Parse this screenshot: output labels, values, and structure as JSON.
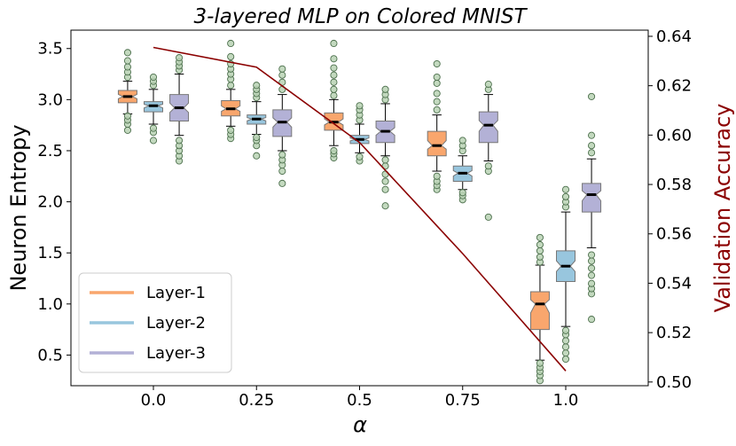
{
  "colors": {
    "layer1": "#f9a66d",
    "layer2": "#98c6de",
    "layer3": "#b3b1d6",
    "accuracy_line": "#8b0000",
    "outlier_fill": "#b8d2b4",
    "outlier_edge": "#4c6f4c",
    "median": "#000000"
  },
  "chart_data": {
    "type": "box+line",
    "title": "3-layered MLP on Colored MNIST",
    "xlabel": "α",
    "ylabel_left": "Neuron Entropy",
    "ylabel_right": "Validation Accuracy",
    "categories": [
      "0.0",
      "0.25",
      "0.5",
      "0.75",
      "1.0"
    ],
    "x": [
      0.0,
      0.25,
      0.5,
      0.75,
      1.0
    ],
    "xlim": [
      -0.2,
      1.2
    ],
    "ylim_left": [
      0.2,
      3.68
    ],
    "ylim_right": [
      0.4985,
      0.6425
    ],
    "yticks_left": [
      0.5,
      1.0,
      1.5,
      2.0,
      2.5,
      3.0,
      3.5
    ],
    "yticks_left_labels": [
      "0.5",
      "1.0",
      "1.5",
      "2.0",
      "2.5",
      "3.0",
      "3.5"
    ],
    "yticks_right": [
      0.5,
      0.52,
      0.54,
      0.56,
      0.58,
      0.6,
      0.62,
      0.64
    ],
    "yticks_right_labels": [
      "0.50",
      "0.52",
      "0.54",
      "0.56",
      "0.58",
      "0.60",
      "0.62",
      "0.64"
    ],
    "legend": {
      "placement": "lower-left",
      "entries": [
        "Layer-1",
        "Layer-2",
        "Layer-3"
      ]
    },
    "series": [
      {
        "name": "Layer-1",
        "boxes": [
          {
            "alpha": 0.0,
            "whisker_low": 2.86,
            "q1": 2.97,
            "median": 3.03,
            "q3": 3.09,
            "whisker_high": 3.18,
            "outliers": [
              2.7,
              2.76,
              2.8,
              2.84,
              3.22,
              3.27,
              3.32,
              3.38,
              3.46
            ]
          },
          {
            "alpha": 0.25,
            "whisker_low": 2.74,
            "q1": 2.84,
            "median": 2.91,
            "q3": 2.99,
            "whisker_high": 3.1,
            "outliers": [
              2.62,
              2.66,
              2.7,
              3.14,
              3.2,
              3.25,
              3.3,
              3.35,
              3.42,
              3.55
            ]
          },
          {
            "alpha": 0.5,
            "whisker_low": 2.55,
            "q1": 2.7,
            "median": 2.78,
            "q3": 2.87,
            "whisker_high": 3.0,
            "outliers": [
              2.43,
              2.47,
              2.5,
              3.04,
              3.1,
              3.17,
              3.24,
              3.31,
              3.4,
              3.55
            ]
          },
          {
            "alpha": 0.75,
            "whisker_low": 2.3,
            "q1": 2.45,
            "median": 2.55,
            "q3": 2.69,
            "whisker_high": 2.85,
            "outliers": [
              2.12,
              2.16,
              2.2,
              2.25,
              2.9,
              2.98,
              3.06,
              3.16,
              3.22,
              3.35
            ]
          },
          {
            "alpha": 1.0,
            "whisker_low": 0.45,
            "q1": 0.75,
            "median": 1.0,
            "q3": 1.12,
            "whisker_high": 1.38,
            "outliers": [
              0.25,
              0.3,
              0.34,
              0.38,
              0.42,
              1.41,
              1.46,
              1.52,
              1.58,
              1.65
            ]
          }
        ]
      },
      {
        "name": "Layer-2",
        "boxes": [
          {
            "alpha": 0.0,
            "whisker_low": 2.76,
            "q1": 2.88,
            "median": 2.94,
            "q3": 2.98,
            "whisker_high": 3.1,
            "outliers": [
              2.6,
              2.68,
              2.72,
              3.14,
              3.18,
              3.22
            ]
          },
          {
            "alpha": 0.25,
            "whisker_low": 2.66,
            "q1": 2.76,
            "median": 2.81,
            "q3": 2.85,
            "whisker_high": 2.98,
            "outliers": [
              2.45,
              2.55,
              2.6,
              2.63,
              3.02,
              3.06,
              3.1,
              3.14
            ]
          },
          {
            "alpha": 0.5,
            "whisker_low": 2.48,
            "q1": 2.57,
            "median": 2.61,
            "q3": 2.65,
            "whisker_high": 2.76,
            "outliers": [
              2.4,
              2.44,
              2.8,
              2.85,
              2.9,
              2.94
            ]
          },
          {
            "alpha": 0.75,
            "whisker_low": 2.12,
            "q1": 2.2,
            "median": 2.28,
            "q3": 2.35,
            "whisker_high": 2.45,
            "outliers": [
              2.02,
              2.06,
              2.09,
              2.5,
              2.55,
              2.6
            ]
          },
          {
            "alpha": 1.0,
            "whisker_low": 0.78,
            "q1": 1.22,
            "median": 1.37,
            "q3": 1.52,
            "whisker_high": 1.9,
            "outliers": [
              0.46,
              0.52,
              0.58,
              0.64,
              0.7,
              0.74,
              1.95,
              2.0,
              2.05,
              2.12
            ]
          }
        ]
      },
      {
        "name": "Layer-3",
        "boxes": [
          {
            "alpha": 0.0,
            "whisker_low": 2.65,
            "q1": 2.79,
            "median": 2.92,
            "q3": 3.05,
            "whisker_high": 3.25,
            "outliers": [
              2.4,
              2.45,
              2.5,
              2.55,
              2.6,
              3.29,
              3.33,
              3.37,
              3.41
            ]
          },
          {
            "alpha": 0.25,
            "whisker_low": 2.5,
            "q1": 2.64,
            "median": 2.78,
            "q3": 2.9,
            "whisker_high": 3.05,
            "outliers": [
              2.18,
              2.3,
              2.36,
              2.41,
              2.46,
              3.1,
              3.17,
              3.24,
              3.3
            ]
          },
          {
            "alpha": 0.5,
            "whisker_low": 2.45,
            "q1": 2.58,
            "median": 2.69,
            "q3": 2.79,
            "whisker_high": 2.96,
            "outliers": [
              1.96,
              2.12,
              2.2,
              2.27,
              2.35,
              2.41,
              3.0,
              3.05,
              3.1
            ]
          },
          {
            "alpha": 0.75,
            "whisker_low": 2.4,
            "q1": 2.58,
            "median": 2.75,
            "q3": 2.88,
            "whisker_high": 3.05,
            "outliers": [
              1.85,
              2.3,
              2.35,
              3.1,
              3.15
            ]
          },
          {
            "alpha": 1.0,
            "whisker_low": 1.55,
            "q1": 1.9,
            "median": 2.07,
            "q3": 2.18,
            "whisker_high": 2.42,
            "outliers": [
              0.85,
              1.1,
              1.15,
              1.2,
              1.28,
              1.35,
              1.42,
              1.48,
              2.48,
              2.55,
              2.65,
              3.03
            ]
          }
        ]
      }
    ],
    "accuracy_line": {
      "name": "Validation Accuracy",
      "x": [
        0.0,
        0.25,
        0.5,
        0.75,
        1.0
      ],
      "y": [
        0.6355,
        0.6275,
        0.597,
        0.552,
        0.5045
      ]
    }
  }
}
